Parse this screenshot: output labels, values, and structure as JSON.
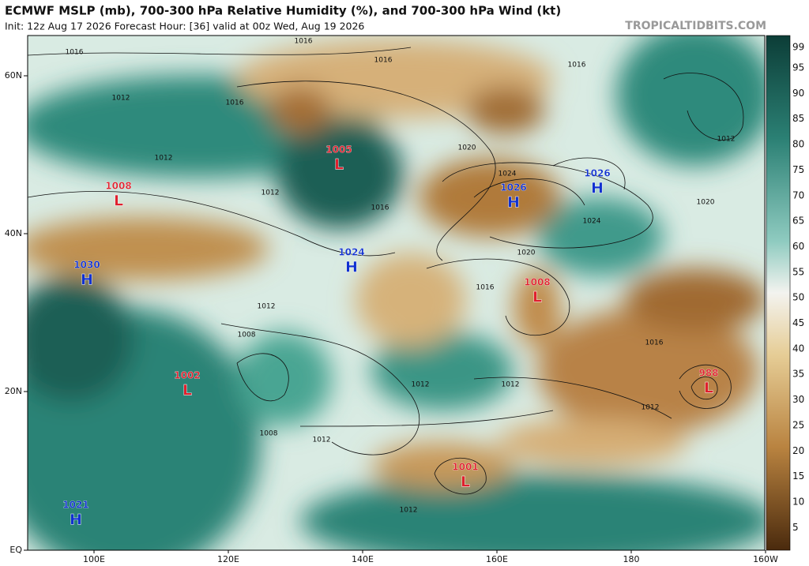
{
  "header": {
    "title": "ECMWF MSLP (mb), 700-300 hPa Relative Humidity (%), and 700-300 hPa Wind (kt)",
    "subtitle": "Init: 12z Aug 17 2026   Forecast Hour: [36]   valid at 00z Wed, Aug 19 2026",
    "watermark": "TROPICALTIDBITS.COM"
  },
  "axes": {
    "lat_labels": [
      "60N",
      "40N",
      "20N",
      "EQ"
    ],
    "lon_labels": [
      "100E",
      "120E",
      "140E",
      "160E",
      "180",
      "160W"
    ]
  },
  "colorbar": {
    "ticks": [
      99,
      95,
      90,
      85,
      80,
      75,
      70,
      65,
      60,
      55,
      50,
      45,
      40,
      35,
      30,
      25,
      20,
      15,
      10,
      5
    ]
  },
  "centers": [
    {
      "type": "L",
      "value": 1005
    },
    {
      "type": "L",
      "value": 1008
    },
    {
      "type": "H",
      "value": 1030
    },
    {
      "type": "H",
      "value": 1024
    },
    {
      "type": "H",
      "value": 1026
    },
    {
      "type": "H",
      "value": 1026
    },
    {
      "type": "L",
      "value": 1008
    },
    {
      "type": "L",
      "value": 1002
    },
    {
      "type": "L",
      "value": 988
    },
    {
      "type": "L",
      "value": 1001
    },
    {
      "type": "H",
      "value": 1021
    }
  ],
  "isobar_labels": [
    1016,
    1016,
    1012,
    1016,
    1012,
    1012,
    1016,
    1020,
    1024,
    1024,
    1020,
    1020,
    1016,
    1016,
    1012,
    1012,
    1012,
    1008,
    1012,
    1008,
    1012,
    1012,
    1016,
    1016,
    1012
  ]
}
